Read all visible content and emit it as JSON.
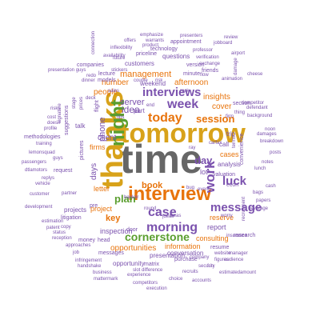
{
  "palette": {
    "purple": "#7b52ae",
    "orange": "#e8740c",
    "green": "#5a9e2e",
    "grey": "#666666",
    "gold": "#d8a21a",
    "teal": "#3a9e87"
  },
  "words": [
    {
      "t": "time",
      "c": "grey"
    },
    {
      "t": "tomorrow",
      "c": "gold"
    },
    {
      "t": "thanks",
      "c": "gold"
    },
    {
      "t": "interview",
      "c": "orange"
    },
    {
      "t": "night",
      "c": "green"
    },
    {
      "t": "today",
      "c": "orange"
    },
    {
      "t": "week",
      "c": "purple"
    },
    {
      "t": "work",
      "c": "purple"
    },
    {
      "t": "case",
      "c": "purple"
    },
    {
      "t": "morning",
      "c": "purple"
    },
    {
      "t": "message",
      "c": "purple"
    },
    {
      "t": "interviews",
      "c": "purple"
    },
    {
      "t": "luck",
      "c": "purple"
    },
    {
      "t": "session",
      "c": "orange"
    },
    {
      "t": "cornerstone",
      "c": "green"
    },
    {
      "t": "idea",
      "c": "purple"
    },
    {
      "t": "plan",
      "c": "green"
    },
    {
      "t": "phone",
      "c": "purple"
    },
    {
      "t": "day",
      "c": "purple"
    },
    {
      "t": "client",
      "c": "purple"
    },
    {
      "t": "days",
      "c": "purple"
    },
    {
      "t": "book",
      "c": "orange"
    },
    {
      "t": "key",
      "c": "orange"
    },
    {
      "t": "server",
      "c": "purple"
    },
    {
      "t": "management",
      "c": "orange"
    },
    {
      "t": "opportunities",
      "c": "orange"
    },
    {
      "t": "afternoon",
      "c": "orange"
    },
    {
      "t": "cover",
      "c": "orange"
    },
    {
      "t": "insights",
      "c": "orange"
    },
    {
      "t": "people",
      "c": "orange"
    },
    {
      "t": "number",
      "c": "orange"
    },
    {
      "t": "project",
      "c": "orange"
    },
    {
      "t": "letter",
      "c": "orange"
    },
    {
      "t": "cases",
      "c": "orange"
    },
    {
      "t": "inspection",
      "c": "purple"
    },
    {
      "t": "information",
      "c": "orange"
    },
    {
      "t": "consulting",
      "c": "orange"
    },
    {
      "t": "reserve",
      "c": "orange"
    },
    {
      "t": "report",
      "c": "purple"
    },
    {
      "t": "analysis",
      "c": "purple"
    },
    {
      "t": "call",
      "c": "purple"
    },
    {
      "t": "lot",
      "c": "purple"
    },
    {
      "t": "trip",
      "c": "purple"
    },
    {
      "t": "firms",
      "c": "orange"
    },
    {
      "t": "part",
      "c": "purple"
    },
    {
      "t": "presentation",
      "c": "purple"
    },
    {
      "t": "opportunity",
      "c": "purple"
    },
    {
      "t": "conversation",
      "c": "purple"
    },
    {
      "t": "weekend",
      "c": "purple"
    },
    {
      "t": "customers",
      "c": "purple"
    },
    {
      "t": "questions",
      "c": "purple"
    },
    {
      "t": "projects",
      "c": "purple"
    },
    {
      "t": "talk",
      "c": "purple"
    },
    {
      "t": "pictures",
      "c": "purple"
    },
    {
      "t": "suggestions",
      "c": "purple"
    },
    {
      "t": "request",
      "c": "purple"
    },
    {
      "t": "litigation",
      "c": "purple"
    },
    {
      "t": "money",
      "c": "purple"
    },
    {
      "t": "head",
      "c": "purple"
    },
    {
      "t": "door",
      "c": "purple"
    },
    {
      "t": "matrix",
      "c": "purple"
    },
    {
      "t": "purchase",
      "c": "purple"
    },
    {
      "t": "resume",
      "c": "purple"
    },
    {
      "t": "research",
      "c": "purple"
    },
    {
      "t": "convenience",
      "c": "purple"
    },
    {
      "t": "section",
      "c": "purple"
    },
    {
      "t": "econ",
      "c": "purple"
    },
    {
      "t": "valuation",
      "c": "purple"
    },
    {
      "t": "version",
      "c": "purple"
    },
    {
      "t": "minute",
      "c": "purple"
    },
    {
      "t": "companies",
      "c": "purple"
    },
    {
      "t": "lecture",
      "c": "purple"
    },
    {
      "t": "models",
      "c": "purple"
    },
    {
      "t": "pre",
      "c": "purple"
    },
    {
      "t": "flight",
      "c": "purple"
    },
    {
      "t": "tips",
      "c": "purple"
    },
    {
      "t": "friends",
      "c": "purple"
    },
    {
      "t": "technology",
      "c": "purple"
    },
    {
      "t": "appointment",
      "c": "purple"
    },
    {
      "t": "priceline",
      "c": "purple"
    },
    {
      "t": "methodologies",
      "c": "purple"
    },
    {
      "t": "training",
      "c": "purple"
    },
    {
      "t": "lemonsquad",
      "c": "purple"
    },
    {
      "t": "dtlamotors",
      "c": "purple"
    },
    {
      "t": "customer",
      "c": "purple"
    },
    {
      "t": "development",
      "c": "purple"
    },
    {
      "t": "estimation",
      "c": "purple"
    },
    {
      "t": "reception",
      "c": "purple"
    },
    {
      "t": "patent",
      "c": "purple"
    },
    {
      "t": "approaches",
      "c": "purple"
    },
    {
      "t": "infringement",
      "c": "purple"
    },
    {
      "t": "handshake",
      "c": "purple"
    },
    {
      "t": "business",
      "c": "purple"
    },
    {
      "t": "mattermark",
      "c": "purple"
    },
    {
      "t": "experience",
      "c": "purple"
    },
    {
      "t": "competitors",
      "c": "purple"
    },
    {
      "t": "choice",
      "c": "purple"
    },
    {
      "t": "accounts",
      "c": "purple"
    },
    {
      "t": "execution",
      "c": "purple"
    },
    {
      "t": "messages",
      "c": "purple"
    },
    {
      "t": "status",
      "c": "purple"
    },
    {
      "t": "passengers",
      "c": "purple"
    },
    {
      "t": "partner",
      "c": "purple"
    },
    {
      "t": "copy",
      "c": "purple"
    },
    {
      "t": "insurance",
      "c": "purple"
    },
    {
      "t": "website",
      "c": "purple"
    },
    {
      "t": "figures",
      "c": "purple"
    },
    {
      "t": "worry",
      "c": "purple"
    },
    {
      "t": "company",
      "c": "purple"
    },
    {
      "t": "audience",
      "c": "purple"
    },
    {
      "t": "manager",
      "c": "purple"
    },
    {
      "t": "estimatedamount",
      "c": "purple"
    },
    {
      "t": "security",
      "c": "purple"
    },
    {
      "t": "difference",
      "c": "purple"
    },
    {
      "t": "slot",
      "c": "purple"
    },
    {
      "t": "recruits",
      "c": "purple"
    },
    {
      "t": "fun",
      "c": "purple"
    },
    {
      "t": "exchange",
      "c": "purple"
    },
    {
      "t": "verification",
      "c": "purple"
    },
    {
      "t": "animation",
      "c": "purple"
    },
    {
      "t": "professor",
      "c": "purple"
    },
    {
      "t": "presenters",
      "c": "purple"
    },
    {
      "t": "warrants",
      "c": "purple"
    },
    {
      "t": "product",
      "c": "purple"
    },
    {
      "t": "offers",
      "c": "purple"
    },
    {
      "t": "emphasize",
      "c": "purple"
    },
    {
      "t": "inflexibility",
      "c": "purple"
    },
    {
      "t": "availability",
      "c": "purple"
    },
    {
      "t": "stickers",
      "c": "purple"
    },
    {
      "t": "presentation guys",
      "c": "purple"
    },
    {
      "t": "connection",
      "c": "purple"
    },
    {
      "t": "future",
      "c": "purple"
    },
    {
      "t": "jobboard",
      "c": "purple"
    },
    {
      "t": "review",
      "c": "purple"
    },
    {
      "t": "airport",
      "c": "purple"
    },
    {
      "t": "damage",
      "c": "purple"
    },
    {
      "t": "cheese",
      "c": "purple"
    },
    {
      "t": "competitor",
      "c": "purple"
    },
    {
      "t": "defendant",
      "c": "purple"
    },
    {
      "t": "background",
      "c": "purple"
    },
    {
      "t": "breakdown",
      "c": "purple"
    },
    {
      "t": "noon",
      "c": "purple"
    },
    {
      "t": "damages",
      "c": "purple"
    },
    {
      "t": "notes",
      "c": "purple"
    },
    {
      "t": "posts",
      "c": "purple"
    },
    {
      "t": "lunch",
      "c": "purple"
    },
    {
      "t": "bags",
      "c": "purple"
    },
    {
      "t": "cash",
      "c": "purple"
    },
    {
      "t": "recruitment",
      "c": "purple"
    },
    {
      "t": "leverage",
      "c": "purple"
    },
    {
      "t": "papers",
      "c": "purple"
    },
    {
      "t": "terms",
      "c": "purple"
    },
    {
      "t": "firm",
      "c": "purple"
    },
    {
      "t": "rock",
      "c": "purple"
    },
    {
      "t": "risk",
      "c": "purple"
    },
    {
      "t": "couple",
      "c": "purple"
    },
    {
      "t": "dinner",
      "c": "purple"
    },
    {
      "t": "redo",
      "c": "purple"
    },
    {
      "t": "deck",
      "c": "purple"
    },
    {
      "t": "prices",
      "c": "purple"
    },
    {
      "t": "cost",
      "c": "purple"
    },
    {
      "t": "doesn",
      "c": "purple"
    },
    {
      "t": "profile",
      "c": "purple"
    },
    {
      "t": "risks",
      "c": "purple"
    },
    {
      "t": "guys",
      "c": "purple"
    },
    {
      "t": "replys",
      "c": "purple"
    },
    {
      "t": "vehicle",
      "c": "purple"
    },
    {
      "t": "job",
      "c": "purple"
    },
    {
      "t": "bug",
      "c": "purple"
    },
    {
      "t": "event",
      "c": "purple"
    },
    {
      "t": "jdeas",
      "c": "purple"
    },
    {
      "t": "round",
      "c": "purple"
    },
    {
      "t": "banker",
      "c": "purple"
    },
    {
      "t": "ray",
      "c": "purple"
    },
    {
      "t": "thing",
      "c": "purple"
    },
    {
      "t": "flow",
      "c": "purple"
    },
    {
      "t": "carfax",
      "c": "purple"
    },
    {
      "t": "sales",
      "c": "purple"
    },
    {
      "t": "stage",
      "c": "purple"
    },
    {
      "t": "signature",
      "c": "purple"
    },
    {
      "t": "end",
      "c": "purple"
    },
    {
      "t": "ideas",
      "c": "purple"
    }
  ]
}
